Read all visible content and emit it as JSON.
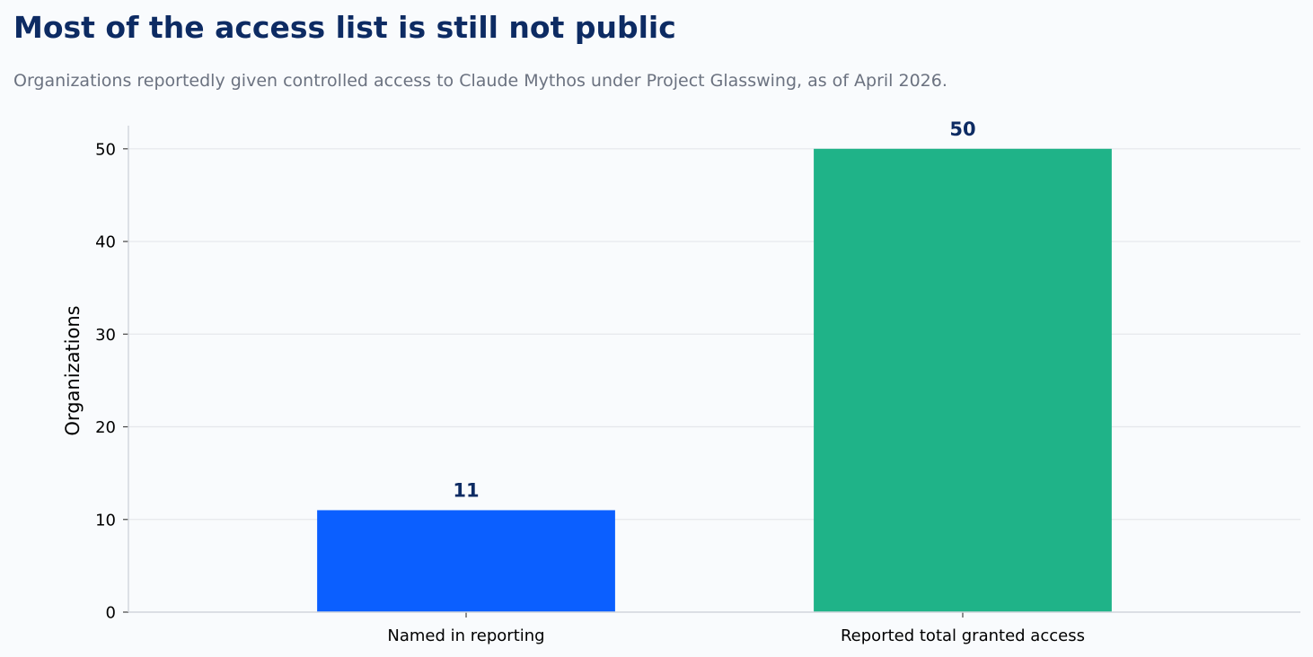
{
  "header": {
    "title": "Most of the access list is still not public",
    "subtitle": "Organizations reportedly given controlled access to Claude Mythos under Project Glasswing, as of April 2026."
  },
  "chart_data": {
    "type": "bar",
    "title": "Most of the access list is still not public",
    "subtitle": "Organizations reportedly given controlled access to Claude Mythos under Project Glasswing, as of April 2026.",
    "categories": [
      "Named in reporting",
      "Reported total granted access"
    ],
    "values": [
      11,
      50
    ],
    "bar_colors": [
      "#0b5fff",
      "#1fb388"
    ],
    "xlabel": "",
    "ylabel": "Organizations",
    "ylim": [
      0,
      52.5
    ],
    "yticks": [
      0,
      10,
      20,
      30,
      40,
      50
    ],
    "grid": "horizontal",
    "data_labels": true
  },
  "colors": {
    "background": "#f9fbfd",
    "title": "#0d2b63",
    "subtitle": "#6b7280",
    "grid": "#e5e7eb",
    "axis": "#d1d5db"
  }
}
